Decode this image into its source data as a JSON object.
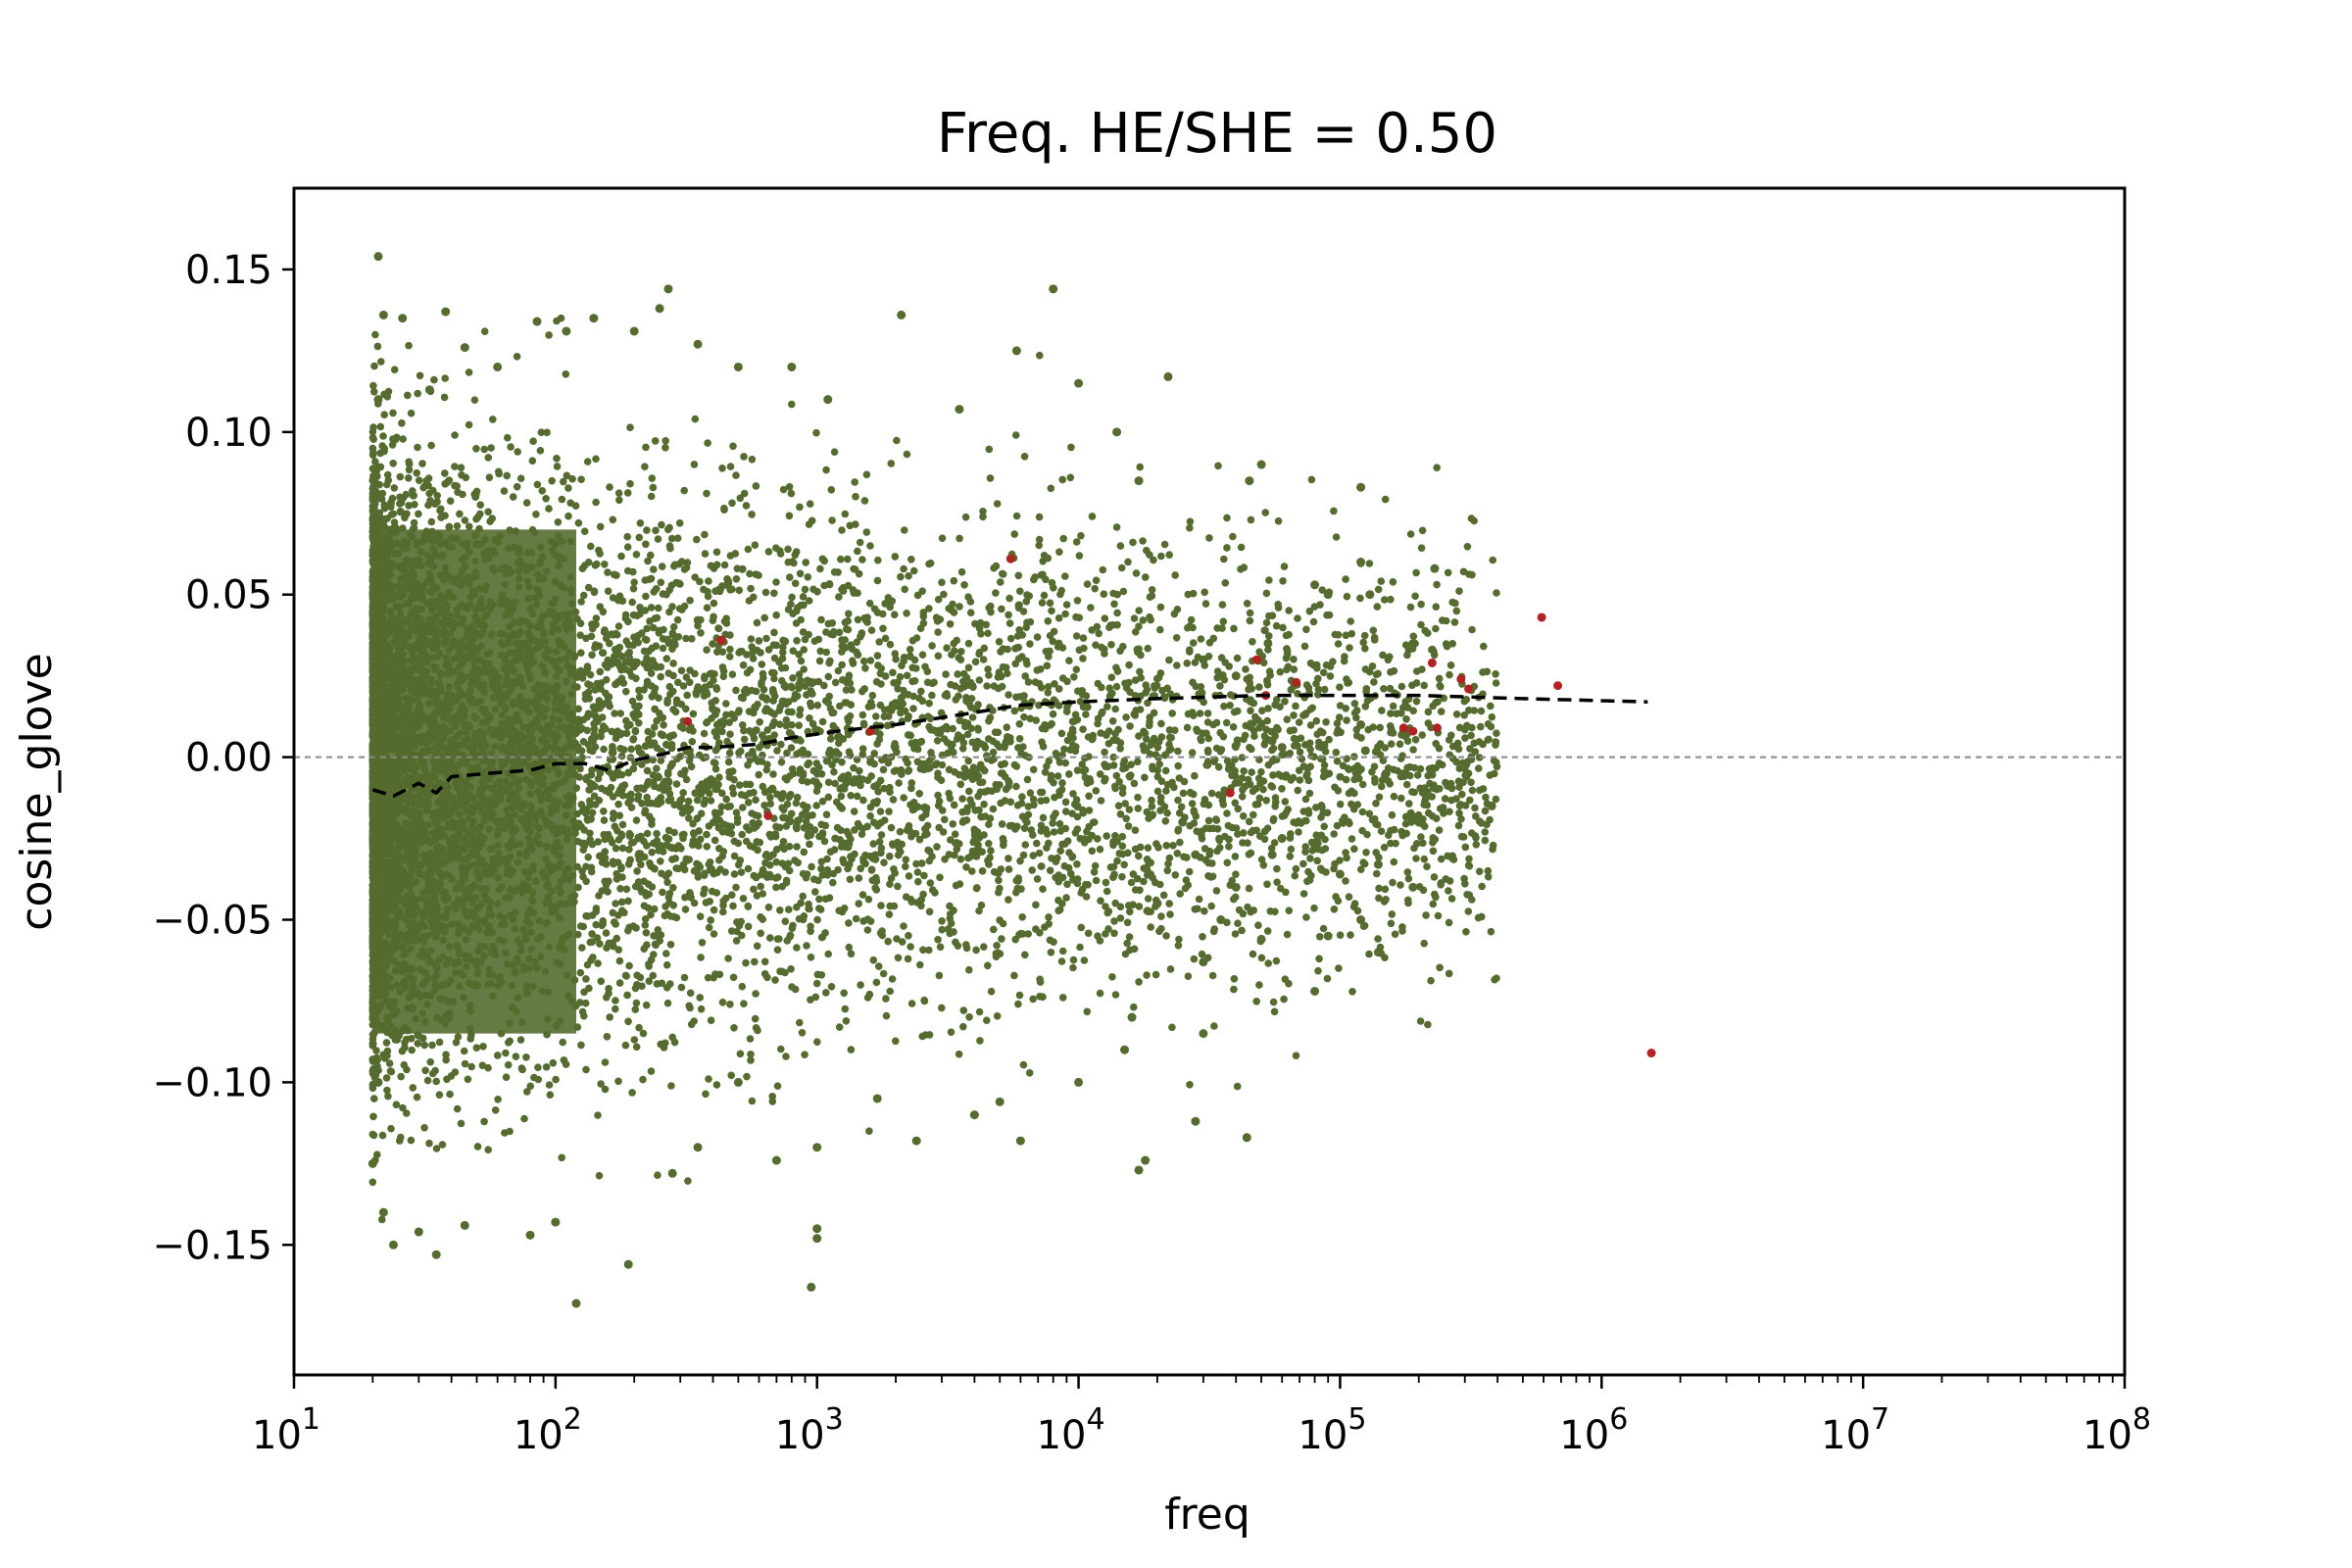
{
  "chart_data": {
    "type": "scatter",
    "title": "Freq. HE/SHE = 0.50",
    "xlabel": "freq",
    "ylabel": "cosine_glove",
    "xscale": "log",
    "xlim": [
      10,
      100000000
    ],
    "ylim": [
      -0.19,
      0.175
    ],
    "x_ticks": [
      {
        "base": "10",
        "exp": "1"
      },
      {
        "base": "10",
        "exp": "2"
      },
      {
        "base": "10",
        "exp": "3"
      },
      {
        "base": "10",
        "exp": "4"
      },
      {
        "base": "10",
        "exp": "5"
      },
      {
        "base": "10",
        "exp": "6"
      },
      {
        "base": "10",
        "exp": "7"
      },
      {
        "base": "10",
        "exp": "8"
      }
    ],
    "y_ticks": [
      "0.15",
      "0.10",
      "0.05",
      "0.00",
      "−0.05",
      "−0.10",
      "−0.15"
    ],
    "y_tick_values": [
      0.15,
      0.1,
      0.05,
      0.0,
      -0.05,
      -0.1,
      -0.15
    ],
    "reference_line": {
      "y": 0.0,
      "style": "dashed",
      "color": "#888888"
    },
    "grid": false,
    "colors": {
      "main": "#556b2f",
      "highlight": "#b22222",
      "trend": "#000000"
    },
    "series": [
      {
        "role": "words",
        "color": "#556b2f",
        "points": [
          [
            21,
            0.154
          ],
          [
            22,
            0.136
          ],
          [
            26,
            0.135
          ],
          [
            33,
            0.113
          ],
          [
            38,
            0.137
          ],
          [
            45,
            0.126
          ],
          [
            60,
            0.12
          ],
          [
            85,
            0.134
          ],
          [
            110,
            0.131
          ],
          [
            140,
            0.135
          ],
          [
            200,
            0.131
          ],
          [
            270,
            0.144
          ],
          [
            250,
            0.138
          ],
          [
            350,
            0.127
          ],
          [
            500,
            0.12
          ],
          [
            800,
            0.12
          ],
          [
            1100,
            0.11
          ],
          [
            2100,
            0.136
          ],
          [
            3500,
            0.107
          ],
          [
            5800,
            0.125
          ],
          [
            8000,
            0.144
          ],
          [
            10000,
            0.115
          ],
          [
            22000,
            0.117
          ],
          [
            14000,
            0.1
          ],
          [
            17000,
            0.085
          ],
          [
            45000,
            0.085
          ],
          [
            50000,
            0.09
          ],
          [
            120000,
            0.083
          ],
          [
            80000,
            0.053
          ],
          [
            120000,
            0.06
          ],
          [
            230000,
            0.058
          ],
          [
            90000,
            0.05
          ],
          [
            130000,
            0.05
          ],
          [
            53000,
            0.035
          ],
          [
            40000,
            0.025
          ],
          [
            30000,
            0.03
          ],
          [
            60000,
            0.003
          ],
          [
            55000,
            0.005
          ],
          [
            120000,
            0.01
          ],
          [
            125000,
            0.002
          ],
          [
            150000,
            -0.005
          ],
          [
            200000,
            -0.02
          ],
          [
            380000,
            -0.015
          ],
          [
            190000,
            -0.04
          ],
          [
            140000,
            -0.033
          ],
          [
            80000,
            -0.027
          ],
          [
            100000,
            -0.036
          ],
          [
            120000,
            -0.05
          ],
          [
            140000,
            -0.06
          ],
          [
            90000,
            -0.055
          ],
          [
            80000,
            -0.072
          ],
          [
            50000,
            -0.056
          ],
          [
            40000,
            -0.04
          ],
          [
            30000,
            -0.063
          ],
          [
            35000,
            -0.05
          ],
          [
            28000,
            -0.03
          ],
          [
            25000,
            -0.02
          ],
          [
            60000,
            -0.025
          ],
          [
            55000,
            -0.03
          ],
          [
            20000,
            -0.045
          ],
          [
            16000,
            -0.08
          ],
          [
            30000,
            -0.085
          ],
          [
            15000,
            -0.09
          ],
          [
            10000,
            -0.1
          ],
          [
            28000,
            -0.112
          ],
          [
            44000,
            -0.117
          ],
          [
            18000,
            -0.124
          ],
          [
            17000,
            -0.127
          ],
          [
            6000,
            -0.118
          ],
          [
            5000,
            -0.106
          ],
          [
            4000,
            -0.11
          ],
          [
            2400,
            -0.118
          ],
          [
            1700,
            -0.105
          ],
          [
            1000,
            -0.12
          ],
          [
            1000,
            -0.145
          ],
          [
            1000,
            -0.148
          ],
          [
            950,
            -0.163
          ],
          [
            700,
            -0.124
          ],
          [
            500,
            -0.1
          ],
          [
            350,
            -0.12
          ],
          [
            280,
            -0.128
          ],
          [
            190,
            -0.156
          ],
          [
            120,
            -0.168
          ],
          [
            100,
            -0.143
          ],
          [
            80,
            -0.147
          ],
          [
            45,
            -0.144
          ],
          [
            35,
            -0.153
          ],
          [
            30,
            -0.146
          ],
          [
            24,
            -0.15
          ],
          [
            22,
            -0.14
          ],
          [
            20,
            -0.125
          ],
          [
            21,
            -0.1
          ],
          [
            21,
            -0.07
          ],
          [
            21,
            -0.04
          ],
          [
            21,
            -0.01
          ],
          [
            21,
            0.02
          ],
          [
            21,
            0.05
          ],
          [
            21,
            0.08
          ],
          [
            21,
            0.11
          ]
        ]
      },
      {
        "role": "highlighted",
        "color": "#b22222",
        "points": [
          [
            430,
            0.036
          ],
          [
            320,
            0.011
          ],
          [
            650,
            -0.018
          ],
          [
            1600,
            0.008
          ],
          [
            5500,
            0.061
          ],
          [
            38000,
            -0.011
          ],
          [
            48000,
            0.03
          ],
          [
            52000,
            0.019
          ],
          [
            68000,
            0.023
          ],
          [
            175000,
            0.009
          ],
          [
            190000,
            0.008
          ],
          [
            225000,
            0.029
          ],
          [
            235000,
            0.009
          ],
          [
            290000,
            0.024
          ],
          [
            310000,
            0.021
          ],
          [
            590000,
            0.043
          ],
          [
            680000,
            0.022
          ],
          [
            1550000,
            -0.091
          ]
        ]
      }
    ],
    "trend": {
      "style": "dashed",
      "color": "#000000",
      "points": [
        [
          20,
          -0.01
        ],
        [
          24,
          -0.012
        ],
        [
          30,
          -0.008
        ],
        [
          35,
          -0.011
        ],
        [
          40,
          -0.006
        ],
        [
          55,
          -0.005
        ],
        [
          80,
          -0.004
        ],
        [
          100,
          -0.002
        ],
        [
          130,
          -0.002
        ],
        [
          160,
          -0.004
        ],
        [
          200,
          -0.001
        ],
        [
          260,
          0.001
        ],
        [
          320,
          0.003
        ],
        [
          400,
          0.003
        ],
        [
          600,
          0.004
        ],
        [
          800,
          0.006
        ],
        [
          1200,
          0.008
        ],
        [
          2000,
          0.01
        ],
        [
          3500,
          0.013
        ],
        [
          6000,
          0.016
        ],
        [
          10000,
          0.017
        ],
        [
          20000,
          0.018
        ],
        [
          50000,
          0.019
        ],
        [
          100000,
          0.019
        ],
        [
          200000,
          0.019
        ],
        [
          500000,
          0.018
        ],
        [
          1500000,
          0.017
        ]
      ]
    }
  }
}
